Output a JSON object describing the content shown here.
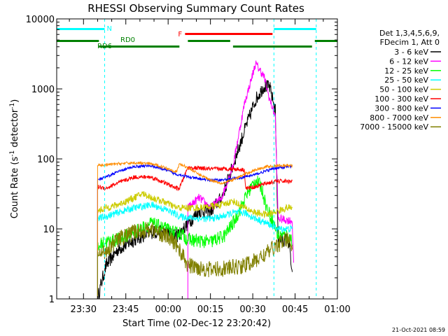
{
  "chart_data": {
    "type": "line",
    "title": "RHESSI Observing Summary Count Rates",
    "xlabel": "Start Time (02-Dec-12 23:20:42)",
    "ylabel_main": "Count Rate (s",
    "ylabel_sup1": "-1",
    "ylabel_mid": " detector",
    "ylabel_sup2": "-1",
    "ylabel_end": ")",
    "y_scale": "log",
    "ylim": [
      1,
      10000
    ],
    "xlim_minutes_from_2330": [
      -9.5,
      90
    ],
    "x_ticks": [
      {
        "label": "23:30",
        "minute": 0
      },
      {
        "label": "23:45",
        "minute": 15
      },
      {
        "label": "00:00",
        "minute": 30
      },
      {
        "label": "00:15",
        "minute": 45
      },
      {
        "label": "00:30",
        "minute": 60
      },
      {
        "label": "00:45",
        "minute": 75
      },
      {
        "label": "01:00",
        "minute": 90
      }
    ],
    "y_ticks": [
      {
        "label": "1",
        "value": 1
      },
      {
        "label": "10",
        "value": 10
      },
      {
        "label": "100",
        "value": 100
      },
      {
        "label": "1000",
        "value": 1000
      },
      {
        "label": "10000",
        "value": 10000
      }
    ],
    "legend_header": [
      "Det 1,3,4,5,6,9,",
      "FDecim 1, Att 0"
    ],
    "legend_placement": "right",
    "timestamp": "21-Oct-2021 08:59",
    "flags": {
      "night": {
        "label": "N",
        "color": "#00ffff",
        "segments": [
          [
            -9.5,
            7.5
          ],
          [
            67.5,
            82.5
          ]
        ],
        "boundary_lines": [
          -9.5,
          7.5,
          67.5,
          82.5
        ]
      },
      "flare": {
        "label": "F",
        "color": "#ff0000",
        "segments": [
          [
            36,
            67
          ]
        ]
      },
      "decimation": {
        "labels": [
          "RD0",
          "RD6"
        ],
        "color": "#008000",
        "segments": [
          [
            -9.5,
            34
          ],
          [
            37,
            52
          ],
          [
            53,
            81
          ],
          [
            82,
            90
          ]
        ]
      }
    },
    "series": [
      {
        "name": "3 - 6 keV",
        "color": "#000000",
        "noise": 0.1,
        "points": [
          [
            5,
            1
          ],
          [
            6,
            1.5
          ],
          [
            8,
            3
          ],
          [
            12,
            5
          ],
          [
            18,
            7
          ],
          [
            24,
            9
          ],
          [
            29,
            9
          ],
          [
            33,
            8
          ],
          [
            34,
            8.5
          ],
          [
            37,
            12
          ],
          [
            41,
            18
          ],
          [
            45,
            18
          ],
          [
            49,
            28
          ],
          [
            53,
            80
          ],
          [
            57,
            250
          ],
          [
            61,
            700
          ],
          [
            64,
            1100
          ],
          [
            66,
            1050
          ],
          [
            68,
            500
          ],
          [
            69,
            7
          ],
          [
            72,
            7
          ],
          [
            73,
            6
          ],
          [
            74,
            2
          ]
        ]
      },
      {
        "name": "6 - 12 keV",
        "color": "#ff00ff",
        "noise": 0.06,
        "points": [
          [
            37,
            20
          ],
          [
            41,
            28
          ],
          [
            45,
            20
          ],
          [
            49,
            28
          ],
          [
            53,
            80
          ],
          [
            57,
            600
          ],
          [
            61,
            2300
          ],
          [
            64,
            1500
          ],
          [
            66,
            700
          ],
          [
            68,
            400
          ],
          [
            69,
            14
          ],
          [
            74,
            13
          ],
          [
            74.5,
            3
          ]
        ]
      },
      {
        "name": "12 - 25 keV",
        "color": "#00ff00",
        "noise": 0.1,
        "points": [
          [
            5,
            5
          ],
          [
            6,
            6
          ],
          [
            8,
            6.5
          ],
          [
            12,
            7
          ],
          [
            18,
            9
          ],
          [
            24,
            12
          ],
          [
            29,
            10
          ],
          [
            33,
            8.5
          ],
          [
            34,
            9
          ],
          [
            37,
            7
          ],
          [
            45,
            6.5
          ],
          [
            50,
            8
          ],
          [
            54,
            14
          ],
          [
            58,
            32
          ],
          [
            61,
            50
          ],
          [
            63,
            40
          ],
          [
            65,
            20
          ],
          [
            67,
            13
          ],
          [
            69,
            8
          ],
          [
            72,
            8
          ],
          [
            74,
            7
          ]
        ]
      },
      {
        "name": "25 - 50 keV",
        "color": "#00ffff",
        "noise": 0.05,
        "points": [
          [
            5,
            14
          ],
          [
            8,
            15
          ],
          [
            12,
            17
          ],
          [
            18,
            20
          ],
          [
            24,
            22
          ],
          [
            29,
            19
          ],
          [
            33,
            16
          ],
          [
            34,
            15
          ],
          [
            41,
            14
          ],
          [
            45,
            14
          ],
          [
            49,
            15
          ],
          [
            53,
            17
          ],
          [
            57,
            17
          ],
          [
            61,
            14
          ],
          [
            65,
            12
          ],
          [
            69,
            10
          ],
          [
            74,
            10
          ]
        ]
      },
      {
        "name": "50 - 100 keV",
        "color": "#cccc00",
        "noise": 0.05,
        "points": [
          [
            5,
            18
          ],
          [
            8,
            20
          ],
          [
            12,
            22
          ],
          [
            18,
            28
          ],
          [
            21,
            32
          ],
          [
            24,
            28
          ],
          [
            29,
            24
          ],
          [
            33,
            20
          ],
          [
            34,
            20
          ],
          [
            37,
            20
          ],
          [
            41,
            20
          ],
          [
            49,
            22
          ],
          [
            53,
            25
          ],
          [
            57,
            20
          ],
          [
            61,
            17
          ],
          [
            65,
            16
          ],
          [
            69,
            18
          ],
          [
            72,
            20
          ],
          [
            74,
            20
          ]
        ]
      },
      {
        "name": "100 - 300 keV",
        "color": "#ff0000",
        "noise": 0.03,
        "points": [
          [
            5,
            40
          ],
          [
            8,
            38
          ],
          [
            12,
            45
          ],
          [
            18,
            55
          ],
          [
            24,
            55
          ],
          [
            29,
            45
          ],
          [
            33,
            38
          ],
          [
            34,
            38
          ],
          [
            37,
            75
          ],
          [
            45,
            72
          ],
          [
            49,
            72
          ],
          [
            53,
            72
          ],
          [
            57,
            70
          ],
          [
            57.5,
            38
          ],
          [
            61,
            40
          ],
          [
            65,
            45
          ],
          [
            69,
            48
          ],
          [
            74,
            48
          ]
        ]
      },
      {
        "name": "300 - 800 keV",
        "color": "#0000ff",
        "noise": 0.02,
        "points": [
          [
            5,
            50
          ],
          [
            8,
            55
          ],
          [
            12,
            65
          ],
          [
            18,
            78
          ],
          [
            24,
            80
          ],
          [
            29,
            70
          ],
          [
            33,
            60
          ],
          [
            34,
            60
          ],
          [
            37,
            55
          ],
          [
            41,
            52
          ],
          [
            45,
            50
          ],
          [
            49,
            50
          ],
          [
            53,
            52
          ],
          [
            57,
            55
          ],
          [
            61,
            60
          ],
          [
            65,
            68
          ],
          [
            69,
            75
          ],
          [
            74,
            78
          ]
        ]
      },
      {
        "name": "800 - 7000 keV",
        "color": "#ff8c00",
        "noise": 0.02,
        "points": [
          [
            5,
            80
          ],
          [
            8,
            82
          ],
          [
            12,
            85
          ],
          [
            18,
            88
          ],
          [
            24,
            85
          ],
          [
            29,
            75
          ],
          [
            33,
            65
          ],
          [
            34,
            85
          ],
          [
            37,
            75
          ],
          [
            41,
            60
          ],
          [
            45,
            50
          ],
          [
            49,
            45
          ],
          [
            53,
            50
          ],
          [
            57,
            60
          ],
          [
            61,
            70
          ],
          [
            65,
            78
          ],
          [
            69,
            80
          ],
          [
            74,
            80
          ]
        ]
      },
      {
        "name": "7000 - 15000 keV",
        "color": "#808000",
        "noise": 0.12,
        "points": [
          [
            5,
            4
          ],
          [
            8,
            5
          ],
          [
            12,
            7
          ],
          [
            18,
            9
          ],
          [
            24,
            10
          ],
          [
            29,
            8
          ],
          [
            33,
            6
          ],
          [
            34,
            5
          ],
          [
            37,
            3
          ],
          [
            41,
            2.8
          ],
          [
            45,
            2.6
          ],
          [
            49,
            2.7
          ],
          [
            53,
            2.8
          ],
          [
            57,
            3
          ],
          [
            61,
            3.5
          ],
          [
            65,
            4.5
          ],
          [
            69,
            6
          ],
          [
            72,
            7
          ],
          [
            74,
            6
          ]
        ]
      }
    ]
  }
}
